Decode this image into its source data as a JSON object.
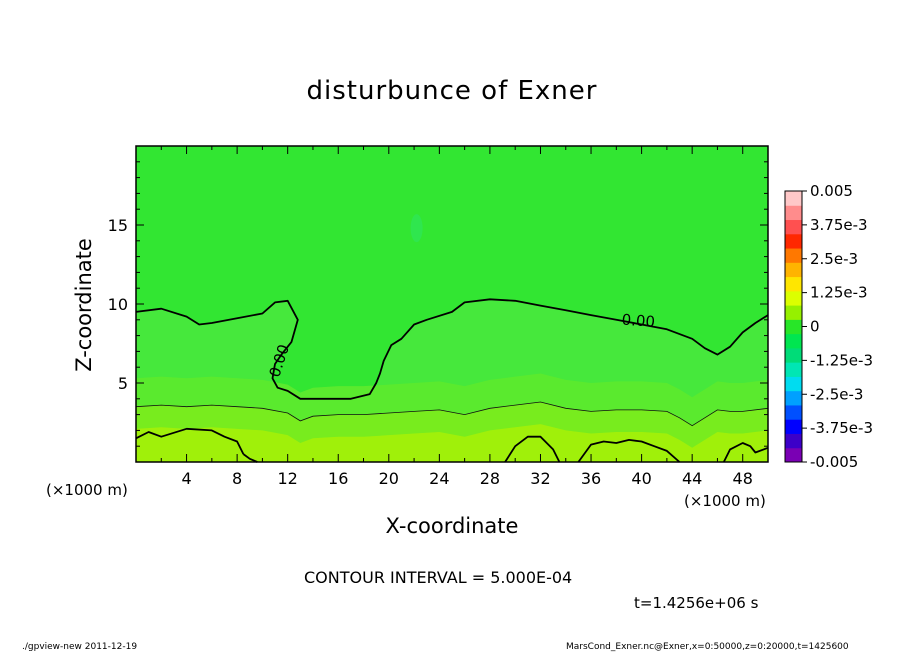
{
  "chart_data": {
    "type": "heatmap",
    "title": "disturbunce of Exner",
    "xlabel": "X-coordinate",
    "ylabel": "Z-coordinate",
    "x_unit_label": "(×1000 m)",
    "y_unit_label": "(×1000 m)",
    "xlim": [
      0,
      50
    ],
    "ylim": [
      0,
      20
    ],
    "x_ticks": [
      "4",
      "8",
      "12",
      "16",
      "20",
      "24",
      "28",
      "32",
      "36",
      "40",
      "44",
      "48"
    ],
    "y_ticks": [
      "5",
      "10",
      "15"
    ],
    "contour_interval_text": "CONTOUR INTERVAL = 5.000E-04",
    "time_text": "t=1.4256e+06 s",
    "contour_label": "0.00",
    "colorbar": {
      "labels": [
        "0.005",
        "3.75e-3",
        "2.5e-3",
        "1.25e-3",
        "0",
        "-1.25e-3",
        "-2.5e-3",
        "-3.75e-3",
        "-0.005"
      ],
      "min": -0.005,
      "max": 0.005,
      "colors": [
        "#7a00b4",
        "#3c00c8",
        "#0000ff",
        "#0050ff",
        "#00a0ff",
        "#00dcf0",
        "#00e6b4",
        "#00dc78",
        "#00e650",
        "#28e628",
        "#96f000",
        "#dcff00",
        "#ffe600",
        "#ffb400",
        "#ff7800",
        "#ff2800",
        "#ff5050",
        "#ff8c8c",
        "#ffc8c8"
      ]
    },
    "zero_contour": {
      "x": [
        0,
        2,
        4,
        5,
        6,
        8,
        10,
        11,
        12,
        12.8,
        12.3,
        11.5,
        11,
        10.8,
        11.2,
        12,
        13,
        15,
        17,
        18.5,
        19,
        19.3,
        19.6,
        20.2,
        21,
        22,
        23,
        25,
        26,
        28,
        30,
        32,
        34,
        36,
        38,
        40,
        42,
        44,
        45,
        46,
        47,
        48,
        49,
        50
      ],
      "y": [
        9.5,
        9.7,
        9.2,
        8.7,
        8.8,
        9.1,
        9.4,
        10.1,
        10.2,
        9.0,
        7.6,
        6.8,
        6.2,
        5.3,
        4.7,
        4.5,
        4.0,
        4.0,
        4.0,
        4.3,
        5.0,
        5.6,
        6.4,
        7.4,
        7.8,
        8.7,
        9.0,
        9.5,
        10.1,
        10.3,
        10.2,
        9.9,
        9.6,
        9.3,
        9.0,
        8.7,
        8.4,
        7.8,
        7.2,
        6.8,
        7.3,
        8.2,
        8.8,
        9.3
      ]
    },
    "thin_contour": {
      "x": [
        0,
        2,
        4,
        6,
        8,
        10,
        12,
        13,
        14,
        16,
        18,
        20,
        22,
        24,
        26,
        28,
        30,
        32,
        34,
        36,
        38,
        40,
        42,
        43,
        44,
        45,
        46,
        47,
        48,
        50
      ],
      "y": [
        3.5,
        3.6,
        3.5,
        3.6,
        3.5,
        3.4,
        3.1,
        2.6,
        2.9,
        3.0,
        3.0,
        3.1,
        3.2,
        3.3,
        3.0,
        3.4,
        3.6,
        3.8,
        3.4,
        3.2,
        3.3,
        3.3,
        3.2,
        2.8,
        2.3,
        2.8,
        3.3,
        3.2,
        3.2,
        3.4
      ]
    },
    "lower_contours": [
      {
        "x": [
          0,
          1,
          2,
          4,
          6,
          7,
          8,
          8.5
        ],
        "y": [
          1.5,
          1.9,
          1.6,
          2.1,
          2.0,
          1.6,
          1.3,
          0.5
        ]
      },
      {
        "x": [
          8.5,
          9,
          9.6
        ],
        "y": [
          0.5,
          0.2,
          0
        ]
      },
      {
        "x": [
          29.2,
          30,
          31,
          32,
          33,
          33.5
        ],
        "y": [
          0,
          1.0,
          1.6,
          1.6,
          0.8,
          0
        ]
      },
      {
        "x": [
          35,
          36,
          37,
          38,
          39,
          40,
          41,
          42,
          43
        ],
        "y": [
          0,
          1.1,
          1.3,
          1.2,
          1.4,
          1.3,
          1.0,
          0.7,
          0
        ]
      },
      {
        "x": [
          46.5,
          47,
          48,
          48.6,
          49,
          50
        ],
        "y": [
          0,
          0.8,
          1.2,
          1.0,
          0.6,
          0.9
        ]
      }
    ]
  },
  "footer": {
    "left": "./gpview-new  2011-12-19",
    "right": "MarsCond_Exner.nc@Exner,x=0:50000,z=0:20000,t=1425600"
  }
}
